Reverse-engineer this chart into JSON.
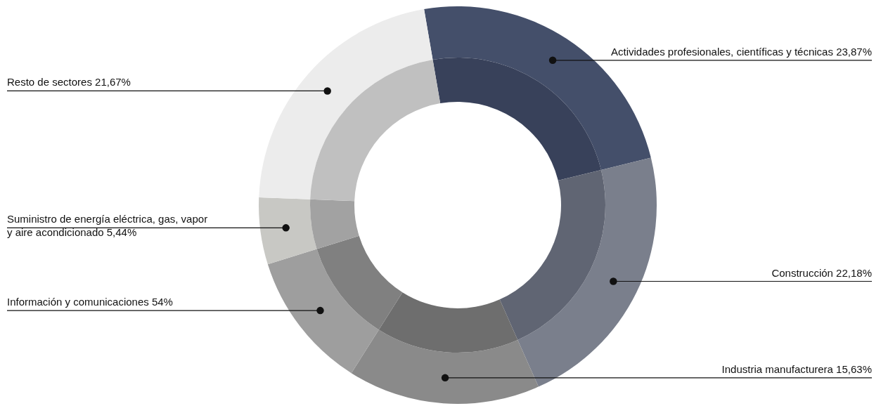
{
  "chart_data": {
    "type": "donut",
    "categories": [
      "Actividades profesionales, científicas y técnicas 23,87%",
      "Construcción 22,18%",
      "Industria manufacturera 15,63%",
      "Información y comunicaciones 54%",
      "Suministro de energía eléctrica, gas, vapor\ny aire acondicionado 5,44%",
      "Resto de sectores 21,67%"
    ],
    "series": [
      {
        "values": [
          23.87,
          22.18,
          15.63,
          11.21,
          5.44,
          21.67
        ],
        "colors": [
          "#444f6a",
          "#7a7f8c",
          "#8a8a8a",
          "#9e9e9e",
          "#c8c8c4",
          "#ececec"
        ]
      },
      {
        "values": [
          23.87,
          22.18,
          15.63,
          11.21,
          5.44,
          21.67
        ],
        "colors": [
          "#38415a",
          "#606573",
          "#6e6e6e",
          "#808080",
          "#a2a2a2",
          "#c0c0c0"
        ]
      }
    ]
  }
}
